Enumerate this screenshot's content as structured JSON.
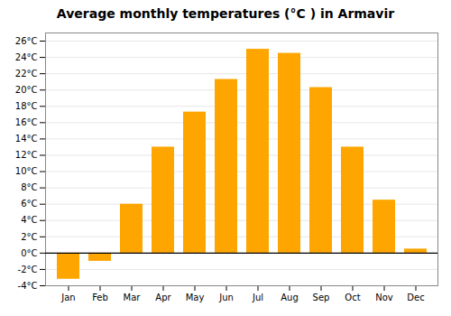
{
  "chart_data": {
    "type": "bar",
    "title": "Average monthly temperatures (°C ) in Armavir",
    "categories": [
      "Jan",
      "Feb",
      "Mar",
      "Apr",
      "May",
      "Jun",
      "Jul",
      "Aug",
      "Sep",
      "Oct",
      "Nov",
      "Dec"
    ],
    "values": [
      -3.2,
      -1.0,
      6.0,
      13.0,
      17.3,
      21.3,
      25.0,
      24.5,
      20.3,
      13.0,
      6.5,
      0.5
    ],
    "color": "#FFA500",
    "ylim": [
      -4,
      27
    ],
    "yticks": [
      {
        "value": -4,
        "label": "-4°C"
      },
      {
        "value": -2,
        "label": "-2°C"
      },
      {
        "value": 0,
        "label": "0°C"
      },
      {
        "value": 2,
        "label": "2°C"
      },
      {
        "value": 4,
        "label": "4°C"
      },
      {
        "value": 6,
        "label": "6°C"
      },
      {
        "value": 8,
        "label": "8°C"
      },
      {
        "value": 10,
        "label": "10°C"
      },
      {
        "value": 12,
        "label": "12°C"
      },
      {
        "value": 14,
        "label": "14°C"
      },
      {
        "value": 16,
        "label": "16°C"
      },
      {
        "value": 18,
        "label": "18°C"
      },
      {
        "value": 20,
        "label": "20°C"
      },
      {
        "value": 22,
        "label": "22°C"
      },
      {
        "value": 24,
        "label": "24°C"
      },
      {
        "value": 26,
        "label": "26°C"
      }
    ],
    "grid": true
  }
}
